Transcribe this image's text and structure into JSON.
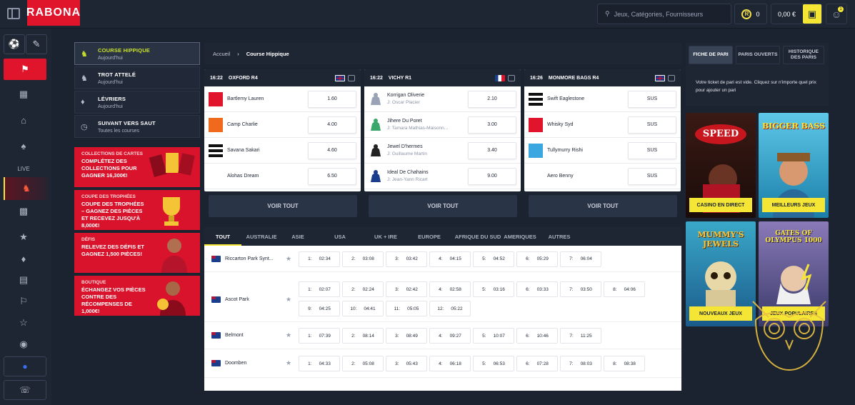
{
  "header": {
    "brand": "RABONA",
    "search_placeholder": "Jeux, Catégories, Fournisseurs",
    "coins": "0",
    "balance": "0,00 €",
    "notifications": "1"
  },
  "categories": [
    {
      "title": "Course Hippique",
      "sub": "Aujourd'hui",
      "icon": "horse-icon"
    },
    {
      "title": "Trot attelé",
      "sub": "Aujourd'hui",
      "icon": "trot-icon"
    },
    {
      "title": "Lévriers",
      "sub": "Aujourd'hui",
      "icon": "greyhound-icon"
    },
    {
      "title": "Suivant vers saut",
      "sub": "Toutes les courses",
      "icon": "clock-icon"
    }
  ],
  "promos": [
    {
      "tag": "Collections de cartes",
      "body": "Complétez des collections pour gagner 16,300€!"
    },
    {
      "tag": "Coupe des trophées",
      "body": "Coupe des trophées – gagnez des pièces et recevez jusqu'à 8,000€!"
    },
    {
      "tag": "Défis",
      "body": "Relevez des défis et gagnez 1,500 pièces!"
    },
    {
      "tag": "Boutique",
      "body": "Échangez vos pièces contre des récompenses de 1,000€!"
    }
  ],
  "breadcrumb": {
    "home": "Accueil",
    "current": "Course Hippique"
  },
  "races": [
    {
      "time": "16:22",
      "venue": "OXFORD R4",
      "flag": "uk",
      "runners": [
        {
          "name": "Bartlemy Lauren",
          "jockey": "",
          "odds": "1.60",
          "silk": "#e0142a"
        },
        {
          "name": "Camp Charlie",
          "jockey": "",
          "odds": "4.00",
          "silk": "#f06a1e"
        },
        {
          "name": "Savana Sakari",
          "jockey": "",
          "odds": "4.60",
          "silk": "stripes"
        },
        {
          "name": "Alohas Dream",
          "jockey": "",
          "odds": "6.50",
          "silk": "#ffffff"
        }
      ]
    },
    {
      "time": "16:22",
      "venue": "VICHY R1",
      "flag": "fr",
      "runners": [
        {
          "name": "Korrigan Oliverie",
          "jockey": "J: Oscar Placier",
          "odds": "2.10",
          "silk": "#9aa3b5"
        },
        {
          "name": "Jihere Du Poret",
          "jockey": "J: Tamara Mathias-Maisonn...",
          "odds": "3.00",
          "silk": "#3aa86b"
        },
        {
          "name": "Jewel D'hermes",
          "jockey": "J: Guillaume Martin",
          "odds": "3.40",
          "silk": "#222222"
        },
        {
          "name": "Ideal De Chahains",
          "jockey": "J: Jean-Yann Ricart",
          "odds": "9.00",
          "silk": "#1a3e8c"
        }
      ]
    },
    {
      "time": "16:26",
      "venue": "MONMORE BAGS R4",
      "flag": "uk",
      "runners": [
        {
          "name": "Swift Eaglestone",
          "jockey": "",
          "odds": "SUS",
          "silk": "stripes"
        },
        {
          "name": "Whisky Syd",
          "jockey": "",
          "odds": "SUS",
          "silk": "#e0142a"
        },
        {
          "name": "Tullymurry Rishi",
          "jockey": "",
          "odds": "SUS",
          "silk": "#3ba7e0"
        },
        {
          "name": "Aero Benny",
          "jockey": "",
          "odds": "SUS",
          "silk": "#ffffff"
        }
      ]
    }
  ],
  "see_all": "VOIR TOUT",
  "regions": [
    "TOUT",
    "AUSTRALIE",
    "ASIE",
    "USA",
    "UK + IRE",
    "EUROPE",
    "AFRIQUE DU SUD",
    "AMERIQUES",
    "AUTRES"
  ],
  "meetings": [
    {
      "name": "Riccarton Park Synt...",
      "races": [
        [
          "1:",
          "02:34"
        ],
        [
          "2:",
          "03:08"
        ],
        [
          "3:",
          "03:42"
        ],
        [
          "4:",
          "04:15"
        ],
        [
          "5:",
          "04:52"
        ],
        [
          "6:",
          "05:29"
        ],
        [
          "7:",
          "06:04"
        ]
      ]
    },
    {
      "name": "Ascot Park",
      "races": [
        [
          "1:",
          "02:07"
        ],
        [
          "2:",
          "02:24"
        ],
        [
          "3:",
          "02:42"
        ],
        [
          "4:",
          "02:58"
        ],
        [
          "5:",
          "03:16"
        ],
        [
          "6:",
          "03:33"
        ],
        [
          "7:",
          "03:50"
        ],
        [
          "8:",
          "04:06"
        ],
        [
          "9:",
          "04:25"
        ],
        [
          "10:",
          "04:41"
        ],
        [
          "11:",
          "05:05"
        ],
        [
          "12:",
          "05:22"
        ]
      ]
    },
    {
      "name": "Belmont",
      "races": [
        [
          "1:",
          "07:39"
        ],
        [
          "2:",
          "08:14"
        ],
        [
          "3:",
          "08:49"
        ],
        [
          "4:",
          "09:27"
        ],
        [
          "5:",
          "10:07"
        ],
        [
          "6:",
          "10:46"
        ],
        [
          "7:",
          "11:25"
        ]
      ]
    },
    {
      "name": "Doomben",
      "races": [
        [
          "1:",
          "04:33"
        ],
        [
          "2:",
          "05:08"
        ],
        [
          "3:",
          "05:43"
        ],
        [
          "4:",
          "06:18"
        ],
        [
          "5:",
          "06:53"
        ],
        [
          "6:",
          "07:28"
        ],
        [
          "7:",
          "08:03"
        ],
        [
          "8:",
          "08:38"
        ]
      ]
    }
  ],
  "betslip": {
    "tabs": [
      "FICHE DE PARI",
      "PARIS OUVERTS",
      "HISTORIQUE DES PARIS"
    ],
    "message": "Votre ticket de pari est vide. Cliquez sur n'importe quel prix pour ajouter un pari"
  },
  "games": [
    {
      "art": "SPEED",
      "label": "CASINO EN DIRECT",
      "bg": "#2b1410"
    },
    {
      "art": "BIGGER BASS",
      "label": "MEILLEURS JEUX",
      "bg": "#2aa8c8"
    },
    {
      "art": "MUMMY'S JEWELS",
      "label": "NOUVEAUX JEUX",
      "bg": "#2c8fb0"
    },
    {
      "art": "GATES OF OLYMPUS 1000",
      "label": "JEUX POPULAIRES",
      "bg": "#5a4a8a"
    }
  ]
}
